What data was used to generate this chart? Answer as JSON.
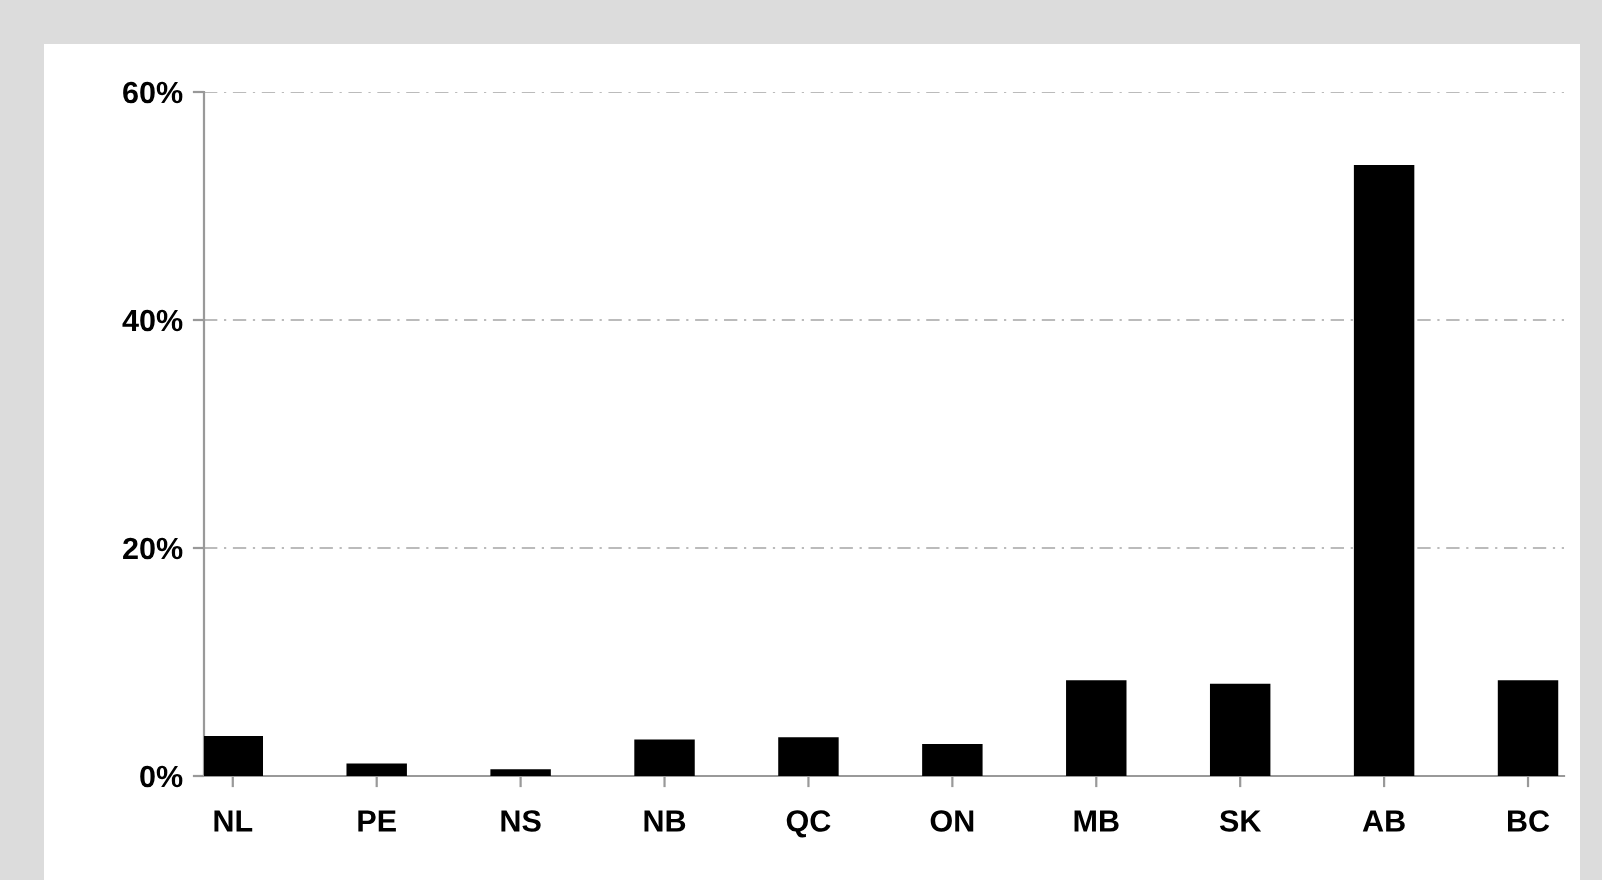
{
  "chart_data": {
    "type": "bar",
    "categories": [
      "NL",
      "PE",
      "NS",
      "NB",
      "QC",
      "ON",
      "MB",
      "SK",
      "AB",
      "BC"
    ],
    "values": [
      3.5,
      1.1,
      0.6,
      3.2,
      3.4,
      2.8,
      8.4,
      8.1,
      53.6,
      8.4
    ],
    "color": "#000000",
    "ylim": [
      0,
      60
    ],
    "yticks": [
      {
        "value": 0,
        "label": "0%"
      },
      {
        "value": 20,
        "label": "20%"
      },
      {
        "value": 40,
        "label": "40%"
      },
      {
        "value": 60,
        "label": "60%"
      }
    ],
    "grid": "y"
  }
}
